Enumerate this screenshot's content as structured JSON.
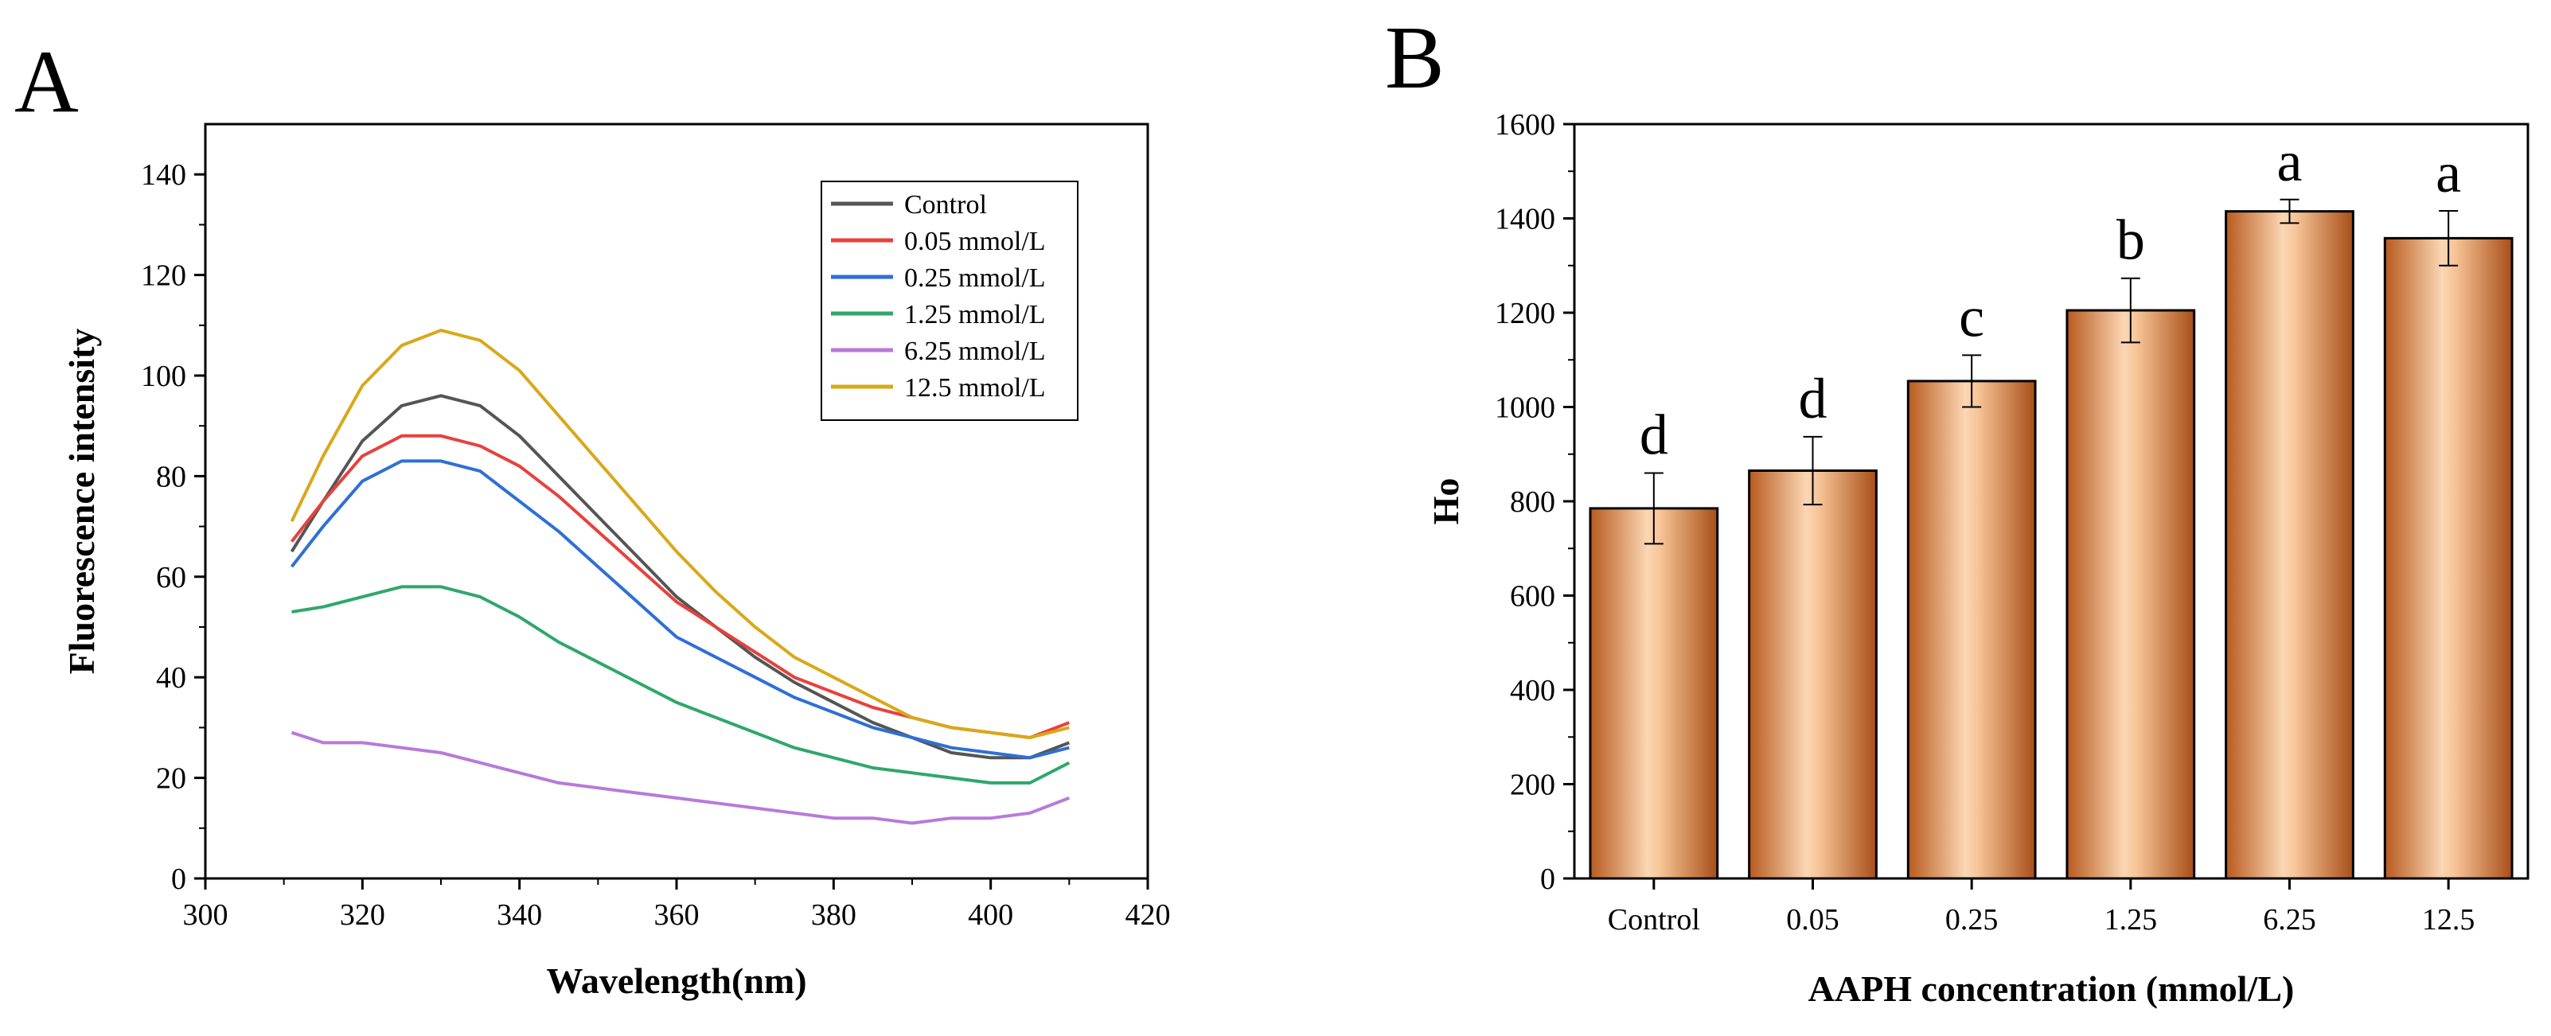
{
  "chart_data": [
    {
      "panel": "A",
      "type": "line",
      "title": "",
      "xlabel": "Wavelength(nm)",
      "ylabel": "Fluorescence intensity",
      "xlim": [
        300,
        420
      ],
      "ylim": [
        0,
        150
      ],
      "xticks": [
        "300",
        "320",
        "340",
        "360",
        "380",
        "400",
        "420"
      ],
      "yticks": [
        "0",
        "20",
        "40",
        "60",
        "80",
        "100",
        "120",
        "140"
      ],
      "legend_position": "top-right",
      "x": [
        311,
        315,
        320,
        325,
        330,
        335,
        340,
        345,
        350,
        355,
        360,
        365,
        370,
        375,
        380,
        385,
        390,
        395,
        400,
        405,
        410
      ],
      "series": [
        {
          "name": "Control",
          "color": "#555555",
          "values": [
            65,
            75,
            87,
            94,
            96,
            94,
            88,
            80,
            72,
            64,
            56,
            50,
            44,
            39,
            35,
            31,
            28,
            25,
            24,
            24,
            27
          ]
        },
        {
          "name": "0.05 mmol/L",
          "color": "#e8413c",
          "values": [
            67,
            75,
            84,
            88,
            88,
            86,
            82,
            76,
            69,
            62,
            55,
            50,
            45,
            40,
            37,
            34,
            32,
            30,
            29,
            28,
            31
          ]
        },
        {
          "name": "0.25 mmol/L",
          "color": "#2f6fd6",
          "values": [
            62,
            70,
            79,
            83,
            83,
            81,
            75,
            69,
            62,
            55,
            48,
            44,
            40,
            36,
            33,
            30,
            28,
            26,
            25,
            24,
            26
          ]
        },
        {
          "name": "1.25 mmol/L",
          "color": "#2ea86a",
          "values": [
            53,
            54,
            56,
            58,
            58,
            56,
            52,
            47,
            43,
            39,
            35,
            32,
            29,
            26,
            24,
            22,
            21,
            20,
            19,
            19,
            23
          ]
        },
        {
          "name": "6.25 mmol/L",
          "color": "#b77ad9",
          "values": [
            29,
            27,
            27,
            26,
            25,
            23,
            21,
            19,
            18,
            17,
            16,
            15,
            14,
            13,
            12,
            12,
            11,
            12,
            12,
            13,
            16
          ]
        },
        {
          "name": "12.5 mmol/L",
          "color": "#d9a81a",
          "values": [
            71,
            84,
            98,
            106,
            109,
            107,
            101,
            92,
            83,
            74,
            65,
            57,
            50,
            44,
            40,
            36,
            32,
            30,
            29,
            28,
            30
          ]
        }
      ]
    },
    {
      "panel": "B",
      "type": "bar",
      "title": "",
      "xlabel": "AAPH concentration (mmol/L)",
      "ylabel": "Ho",
      "ylim": [
        0,
        1600
      ],
      "yticks": [
        "0",
        "200",
        "400",
        "600",
        "800",
        "1000",
        "1200",
        "1400",
        "1600"
      ],
      "categories": [
        "Control",
        "0.05",
        "0.25",
        "1.25",
        "6.25",
        "12.5"
      ],
      "values": [
        785,
        865,
        1055,
        1205,
        1415,
        1358
      ],
      "errors": [
        75,
        72,
        55,
        68,
        25,
        58
      ],
      "significance": [
        "d",
        "d",
        "c",
        "b",
        "a",
        "a"
      ],
      "bar_color": "#e8894a"
    }
  ]
}
